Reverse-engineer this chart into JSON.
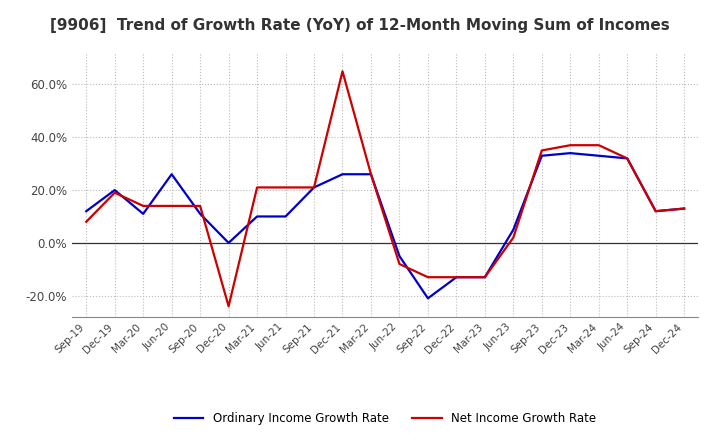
{
  "title": "[9906]  Trend of Growth Rate (YoY) of 12-Month Moving Sum of Incomes",
  "title_fontsize": 11,
  "x_labels": [
    "Sep-19",
    "Dec-19",
    "Mar-20",
    "Jun-20",
    "Sep-20",
    "Dec-20",
    "Mar-21",
    "Jun-21",
    "Sep-21",
    "Dec-21",
    "Mar-22",
    "Jun-22",
    "Sep-22",
    "Dec-22",
    "Mar-23",
    "Jun-23",
    "Sep-23",
    "Dec-23",
    "Mar-24",
    "Jun-24",
    "Sep-24",
    "Dec-24"
  ],
  "ordinary_income": [
    12.0,
    20.0,
    11.0,
    26.0,
    11.0,
    0.0,
    10.0,
    10.0,
    21.0,
    26.0,
    26.0,
    -5.0,
    -21.0,
    -13.0,
    -13.0,
    5.0,
    33.0,
    34.0,
    33.0,
    32.0,
    12.0,
    13.0
  ],
  "net_income": [
    8.0,
    19.0,
    14.0,
    14.0,
    14.0,
    -24.0,
    21.0,
    21.0,
    21.0,
    65.0,
    26.0,
    -8.0,
    -13.0,
    -13.0,
    -13.0,
    2.0,
    35.0,
    37.0,
    37.0,
    32.0,
    12.0,
    13.0
  ],
  "ordinary_color": "#0000cc",
  "net_color": "#cc0000",
  "ylim": [
    -28,
    72
  ],
  "yticks": [
    -20.0,
    0.0,
    20.0,
    40.0,
    60.0
  ],
  "background_color": "#ffffff",
  "grid_color": "#bbbbbb",
  "grid_style": "dotted",
  "legend_ordinary": "Ordinary Income Growth Rate",
  "legend_net": "Net Income Growth Rate"
}
